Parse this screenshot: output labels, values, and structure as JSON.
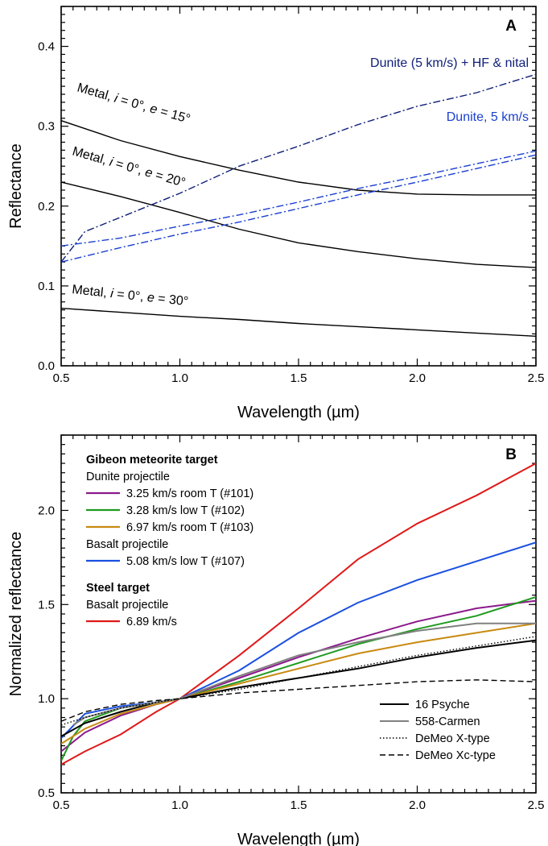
{
  "chart_data": [
    {
      "type": "line",
      "panel": "A",
      "xlabel": "Wavelength (µm)",
      "ylabel": "Reflectance",
      "xlim": [
        0.5,
        2.5
      ],
      "ylim": [
        0.0,
        0.45
      ],
      "xticks": [
        "0.5",
        "1.0",
        "1.5",
        "2.0",
        "2.5"
      ],
      "yticks": [
        "0.0",
        "0.1",
        "0.2",
        "0.3",
        "0.4"
      ],
      "colors": {
        "metal": "#000000",
        "dunite": "#1a3fd0",
        "dunite_hf": "#0f1f78"
      },
      "annotations": [
        {
          "key": "metal15",
          "parts": [
            "Metal, ",
            "i",
            " = 0°, ",
            "e",
            " = 15°"
          ],
          "color": "#000000"
        },
        {
          "key": "metal20",
          "parts": [
            "Metal, ",
            "i",
            " = 0°, ",
            "e",
            " = 20°"
          ],
          "color": "#000000"
        },
        {
          "key": "metal30",
          "parts": [
            "Metal, ",
            "i",
            " = 0°, ",
            "e",
            " = 30°"
          ],
          "color": "#000000"
        },
        {
          "key": "dunite",
          "text": "Dunite, 5 km/s",
          "color": "#1a3fd0"
        },
        {
          "key": "dunitehf",
          "text": "Dunite (5 km/s) + HF & nital",
          "color": "#0f1f78"
        }
      ],
      "series": [
        {
          "key": "metal15",
          "color": "#000000",
          "dash": "solid",
          "x": [
            0.5,
            0.75,
            1.0,
            1.25,
            1.5,
            1.75,
            2.0,
            2.25,
            2.5
          ],
          "y": [
            0.307,
            0.282,
            0.262,
            0.245,
            0.23,
            0.22,
            0.215,
            0.214,
            0.214
          ]
        },
        {
          "key": "metal20",
          "color": "#000000",
          "dash": "solid",
          "x": [
            0.5,
            0.75,
            1.0,
            1.25,
            1.5,
            1.75,
            2.0,
            2.25,
            2.5
          ],
          "y": [
            0.23,
            0.212,
            0.192,
            0.171,
            0.154,
            0.143,
            0.134,
            0.127,
            0.123
          ]
        },
        {
          "key": "metal30",
          "color": "#000000",
          "dash": "solid",
          "x": [
            0.5,
            0.75,
            1.0,
            1.25,
            1.5,
            1.75,
            2.0,
            2.25,
            2.5
          ],
          "y": [
            0.072,
            0.067,
            0.062,
            0.058,
            0.053,
            0.049,
            0.045,
            0.041,
            0.037
          ]
        },
        {
          "key": "dunite_a",
          "color": "#1a3fd0",
          "dash": "dashdot",
          "x": [
            0.5,
            0.75,
            1.0,
            1.25,
            1.5,
            1.75,
            2.0,
            2.25,
            2.5
          ],
          "y": [
            0.15,
            0.16,
            0.175,
            0.189,
            0.205,
            0.222,
            0.237,
            0.253,
            0.269
          ]
        },
        {
          "key": "dunite_b",
          "color": "#1a3fd0",
          "dash": "dashdot",
          "x": [
            0.5,
            0.75,
            1.0,
            1.25,
            1.5,
            1.75,
            2.0,
            2.25,
            2.5
          ],
          "y": [
            0.13,
            0.148,
            0.165,
            0.18,
            0.197,
            0.214,
            0.23,
            0.247,
            0.264
          ]
        },
        {
          "key": "dunite_hf",
          "color": "#0f1f78",
          "dash": "dashdot",
          "x": [
            0.5,
            0.6,
            0.75,
            1.0,
            1.25,
            1.5,
            1.75,
            2.0,
            2.25,
            2.5
          ],
          "y": [
            0.13,
            0.168,
            0.186,
            0.216,
            0.25,
            0.275,
            0.302,
            0.325,
            0.342,
            0.365
          ]
        }
      ]
    },
    {
      "type": "line",
      "panel": "B",
      "xlabel": "Wavelength (µm)",
      "ylabel": "Normalized reflectance",
      "xlim": [
        0.5,
        2.5
      ],
      "ylim": [
        0.5,
        2.4
      ],
      "xticks": [
        "0.5",
        "1.0",
        "1.5",
        "2.0",
        "2.5"
      ],
      "yticks": [
        "0.5",
        "1.0",
        "1.5",
        "2.0"
      ],
      "legend_upper": {
        "placement": "top-left",
        "groups": [
          {
            "heading": "Gibeon meteorite target",
            "sub": "Dunite projectile",
            "entries": [
              {
                "label": "3.25 km/s room T (#101)",
                "color": "#8b1a8b"
              },
              {
                "label": "3.28 km/s low T (#102)",
                "color": "#1f9a1f"
              },
              {
                "label": "6.97 km/s room T (#103)",
                "color": "#c88a10"
              }
            ]
          },
          {
            "heading": "",
            "sub": "Basalt projectile",
            "entries": [
              {
                "label": "5.08 km/s low T (#107)",
                "color": "#1a4fe0"
              }
            ]
          },
          {
            "heading": "Steel target",
            "sub": "Basalt projectile",
            "entries": [
              {
                "label": "6.89 km/s",
                "color": "#e01818"
              }
            ]
          }
        ]
      },
      "legend_lower": {
        "placement": "bottom-right",
        "entries": [
          {
            "label": "16 Psyche",
            "color": "#000000",
            "dash": "solid"
          },
          {
            "label": "558-Carmen",
            "color": "#808080",
            "dash": "solid"
          },
          {
            "label": "DeMeo X-type",
            "color": "#000000",
            "dash": "dotted"
          },
          {
            "label": "DeMeo Xc-type",
            "color": "#000000",
            "dash": "dashed"
          }
        ]
      },
      "series": [
        {
          "name": "6.89 km/s",
          "color": "#e01818",
          "dash": "solid",
          "x": [
            0.5,
            0.6,
            0.75,
            0.9,
            1.0,
            1.25,
            1.5,
            1.75,
            2.0,
            2.25,
            2.5
          ],
          "y": [
            0.65,
            0.72,
            0.81,
            0.93,
            1.0,
            1.23,
            1.48,
            1.74,
            1.93,
            2.08,
            2.25
          ]
        },
        {
          "name": "5.08 km/s low T (#107)",
          "color": "#1a4fe0",
          "dash": "solid",
          "x": [
            0.5,
            0.6,
            0.75,
            0.9,
            1.0,
            1.25,
            1.5,
            1.75,
            2.0,
            2.25,
            2.5
          ],
          "y": [
            0.79,
            0.92,
            0.96,
            0.98,
            1.0,
            1.15,
            1.35,
            1.51,
            1.63,
            1.73,
            1.83
          ]
        },
        {
          "name": "3.25 km/s room T (#101)",
          "color": "#8b1a8b",
          "dash": "solid",
          "x": [
            0.5,
            0.6,
            0.75,
            0.9,
            1.0,
            1.25,
            1.5,
            1.75,
            2.0,
            2.25,
            2.5
          ],
          "y": [
            0.72,
            0.82,
            0.91,
            0.97,
            1.0,
            1.11,
            1.22,
            1.32,
            1.41,
            1.48,
            1.52
          ]
        },
        {
          "name": "3.28 km/s low T (#102)",
          "color": "#1f9a1f",
          "dash": "solid",
          "x": [
            0.5,
            0.55,
            0.6,
            0.75,
            0.9,
            1.0,
            1.25,
            1.5,
            1.75,
            2.0,
            2.25,
            2.5
          ],
          "y": [
            0.67,
            0.8,
            0.88,
            0.95,
            0.98,
            1.0,
            1.09,
            1.19,
            1.29,
            1.37,
            1.44,
            1.54
          ]
        },
        {
          "name": "6.97 km/s room T (#103)",
          "color": "#c88a10",
          "dash": "solid",
          "x": [
            0.5,
            0.6,
            0.75,
            0.9,
            1.0,
            1.25,
            1.5,
            1.75,
            2.0,
            2.25,
            2.5
          ],
          "y": [
            0.76,
            0.84,
            0.92,
            0.97,
            1.0,
            1.08,
            1.16,
            1.24,
            1.3,
            1.35,
            1.4
          ]
        },
        {
          "name": "16 Psyche",
          "color": "#000000",
          "dash": "solid",
          "x": [
            0.5,
            0.6,
            0.75,
            0.9,
            1.0,
            1.25,
            1.5,
            1.75,
            2.0,
            2.25,
            2.5
          ],
          "y": [
            0.8,
            0.87,
            0.93,
            0.98,
            1.0,
            1.06,
            1.11,
            1.16,
            1.22,
            1.27,
            1.31
          ]
        },
        {
          "name": "558-Carmen",
          "color": "#808080",
          "dash": "solid",
          "x": [
            0.55,
            0.6,
            0.75,
            0.9,
            1.0,
            1.25,
            1.5,
            1.75,
            2.0,
            2.25,
            2.5
          ],
          "y": [
            0.86,
            0.9,
            0.95,
            0.98,
            1.0,
            1.12,
            1.23,
            1.3,
            1.36,
            1.4,
            1.4
          ]
        },
        {
          "name": "DeMeo X-type",
          "color": "#000000",
          "dash": "dotted",
          "x": [
            0.5,
            0.6,
            0.75,
            0.9,
            1.0,
            1.25,
            1.5,
            1.75,
            2.0,
            2.25,
            2.5
          ],
          "y": [
            0.86,
            0.9,
            0.95,
            0.98,
            1.0,
            1.05,
            1.11,
            1.17,
            1.23,
            1.28,
            1.33
          ]
        },
        {
          "name": "DeMeo Xc-type",
          "color": "#000000",
          "dash": "dashed",
          "x": [
            0.5,
            0.6,
            0.75,
            0.9,
            1.0,
            1.25,
            1.5,
            1.75,
            2.0,
            2.25,
            2.5
          ],
          "y": [
            0.88,
            0.93,
            0.97,
            0.99,
            1.0,
            1.03,
            1.05,
            1.07,
            1.09,
            1.1,
            1.09
          ]
        }
      ]
    }
  ]
}
